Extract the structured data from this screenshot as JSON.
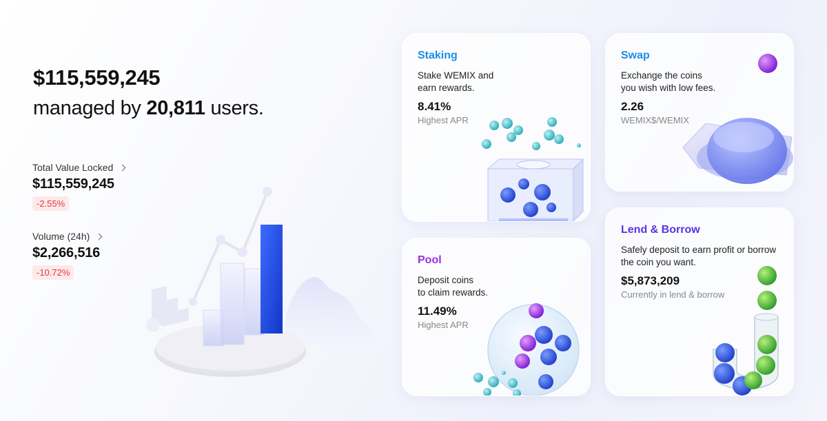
{
  "hero": {
    "amount": "$115,559,245",
    "managed_prefix": "managed by ",
    "users": "20,811",
    "users_suffix": " users."
  },
  "stats": [
    {
      "label": "Total Value Locked",
      "value": "$115,559,245",
      "change": "-2.55%"
    },
    {
      "label": "Volume (24h)",
      "value": "$2,266,516",
      "change": "-10.72%"
    }
  ],
  "cards": {
    "staking": {
      "title": "Staking",
      "desc_1": "Stake WEMIX and",
      "desc_2": "earn rewards.",
      "value": "8.41%",
      "sub": "Highest APR"
    },
    "swap": {
      "title": "Swap",
      "desc_1": "Exchange the coins",
      "desc_2": "you wish with low fees.",
      "value": "2.26",
      "sub": "WEMIX$/WEMIX"
    },
    "pool": {
      "title": "Pool",
      "desc_1": "Deposit coins",
      "desc_2": "to claim rewards.",
      "value": "11.49%",
      "sub": "Highest APR"
    },
    "lend": {
      "title": "Lend & Borrow",
      "desc_1": "Safely deposit to earn profit or borrow",
      "desc_2": "the coin you want.",
      "value": "$5,873,209",
      "sub": "Currently in lend & borrow"
    }
  },
  "colors": {
    "staking_title": "#1a8ee6",
    "swap_title": "#1a8ee6",
    "pool_title": "#9b2ee0",
    "lend_title": "#5a33e0",
    "negative": "#e23c3c",
    "negative_bg": "#fde9ea"
  },
  "icons": {
    "chevron": "chevron-right-icon"
  }
}
